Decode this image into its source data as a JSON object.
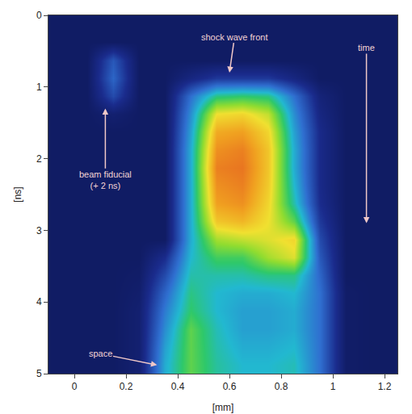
{
  "chart_data": {
    "type": "heatmap",
    "x_label": "[mm]",
    "y_label": "[ns]",
    "xlim": [
      -0.1,
      1.25
    ],
    "xticks": [
      0,
      0.2,
      0.4,
      0.6,
      0.8,
      1.0,
      1.2
    ],
    "ylim": [
      5,
      0
    ],
    "yticks": [
      0,
      1,
      2,
      3,
      4,
      5
    ],
    "zlim": [
      0,
      100
    ],
    "x": [
      -0.05,
      0.05,
      0.15,
      0.25,
      0.35,
      0.45,
      0.55,
      0.65,
      0.75,
      0.85,
      0.95,
      1.05,
      1.15,
      1.25
    ],
    "y": [
      0.125,
      0.375,
      0.625,
      0.875,
      1.125,
      1.375,
      1.625,
      1.875,
      2.125,
      2.375,
      2.625,
      2.875,
      3.125,
      3.375,
      3.625,
      3.875,
      4.125,
      4.375,
      4.625,
      4.875
    ],
    "z": [
      [
        5,
        5,
        5,
        5,
        5,
        5,
        5,
        5,
        5,
        5,
        5,
        5,
        5,
        5
      ],
      [
        5,
        5,
        5,
        5,
        5,
        5,
        5,
        5,
        5,
        5,
        5,
        5,
        5,
        5
      ],
      [
        5,
        5,
        25,
        5,
        5,
        5,
        5,
        5,
        5,
        5,
        5,
        5,
        5,
        5
      ],
      [
        5,
        5,
        28,
        5,
        5,
        12,
        18,
        18,
        18,
        12,
        5,
        5,
        5,
        5
      ],
      [
        5,
        5,
        22,
        5,
        5,
        30,
        48,
        50,
        48,
        30,
        10,
        5,
        5,
        5
      ],
      [
        5,
        5,
        8,
        5,
        5,
        35,
        70,
        72,
        65,
        35,
        12,
        5,
        5,
        5
      ],
      [
        5,
        5,
        5,
        5,
        5,
        38,
        80,
        82,
        72,
        38,
        14,
        5,
        5,
        5
      ],
      [
        5,
        5,
        5,
        5,
        5,
        40,
        85,
        88,
        75,
        40,
        14,
        5,
        5,
        5
      ],
      [
        5,
        5,
        5,
        5,
        5,
        40,
        88,
        90,
        75,
        40,
        14,
        5,
        5,
        5
      ],
      [
        5,
        5,
        5,
        5,
        5,
        40,
        85,
        88,
        74,
        42,
        14,
        5,
        5,
        5
      ],
      [
        5,
        5,
        5,
        5,
        5,
        40,
        82,
        85,
        72,
        45,
        15,
        5,
        5,
        5
      ],
      [
        5,
        5,
        5,
        5,
        5,
        40,
        75,
        78,
        70,
        55,
        18,
        5,
        5,
        5
      ],
      [
        5,
        5,
        5,
        5,
        5,
        40,
        62,
        65,
        68,
        72,
        22,
        5,
        5,
        5
      ],
      [
        5,
        5,
        5,
        5,
        15,
        42,
        52,
        52,
        62,
        68,
        25,
        5,
        5,
        5
      ],
      [
        5,
        5,
        5,
        6,
        22,
        45,
        45,
        45,
        48,
        48,
        28,
        5,
        5,
        5
      ],
      [
        5,
        5,
        5,
        7,
        28,
        48,
        42,
        40,
        40,
        42,
        30,
        6,
        5,
        5
      ],
      [
        5,
        5,
        5,
        8,
        32,
        50,
        42,
        38,
        38,
        40,
        30,
        6,
        5,
        5
      ],
      [
        5,
        5,
        5,
        8,
        35,
        55,
        44,
        38,
        38,
        40,
        30,
        6,
        5,
        5
      ],
      [
        5,
        5,
        5,
        8,
        38,
        55,
        45,
        40,
        40,
        42,
        30,
        6,
        5,
        5
      ],
      [
        5,
        5,
        5,
        8,
        40,
        55,
        46,
        42,
        42,
        44,
        30,
        6,
        5,
        5
      ]
    ],
    "annotations": [
      {
        "text": "shock wave front",
        "x": 0.6,
        "y": 0.8,
        "ax": 0.62,
        "ay": 0.3
      },
      {
        "text": "time",
        "x": 1.13,
        "y": 2.9,
        "ax": 1.13,
        "ay": 0.45
      },
      {
        "text": "beam fiducial (+ 2 ns)",
        "x": 0.12,
        "y": 1.3,
        "ax": 0.12,
        "ay": 2.3
      },
      {
        "text": "space",
        "x": 0.32,
        "y": 4.88,
        "ax": 0.1,
        "ay": 4.72
      }
    ]
  }
}
